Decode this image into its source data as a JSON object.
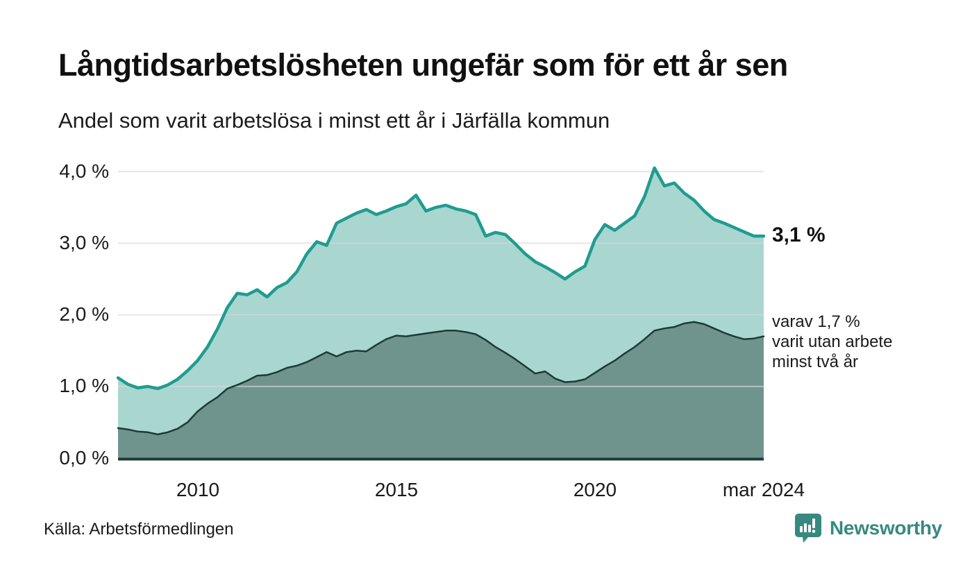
{
  "colors": {
    "total_line": "#1f9c90",
    "total_fill": "#a9d6cf",
    "two_year_line": "#1c3b36",
    "two_year_fill": "#6f948d",
    "gridline": "#d9d9d9",
    "axis": "#1c3b36",
    "brand_teal": "#37897f"
  },
  "annotations": {
    "latest_total": "3,1 %",
    "two_year_note_line1": "varav 1,7 %",
    "two_year_note_line2": "varit utan arbete",
    "two_year_note_line3": "minst två år"
  },
  "source": "Källa: Arbetsförmedlingen",
  "branding": {
    "name": "Newsworthy",
    "icon": "bar-chart-speech-bubble-icon"
  },
  "chart_data": {
    "type": "area",
    "title": "Långtidsarbetslösheten ungefär som för ett år sen",
    "subtitle": "Andel som varit arbetslösa i minst ett år i Järfälla kommun",
    "x_unit": "decimal_year",
    "x_range": [
      2008.0,
      2024.25
    ],
    "ylim": [
      0,
      4.3
    ],
    "grid": "horizontal",
    "legend_position": "right-annotations",
    "x": [
      2008.0,
      2008.25,
      2008.5,
      2008.75,
      2009.0,
      2009.25,
      2009.5,
      2009.75,
      2010.0,
      2010.25,
      2010.5,
      2010.75,
      2011.0,
      2011.25,
      2011.5,
      2011.75,
      2012.0,
      2012.25,
      2012.5,
      2012.75,
      2013.0,
      2013.25,
      2013.5,
      2013.75,
      2014.0,
      2014.25,
      2014.5,
      2014.75,
      2015.0,
      2015.25,
      2015.5,
      2015.75,
      2016.0,
      2016.25,
      2016.5,
      2016.75,
      2017.0,
      2017.25,
      2017.5,
      2017.75,
      2018.0,
      2018.25,
      2018.5,
      2018.75,
      2019.0,
      2019.25,
      2019.5,
      2019.75,
      2020.0,
      2020.25,
      2020.5,
      2020.75,
      2021.0,
      2021.25,
      2021.5,
      2021.75,
      2022.0,
      2022.25,
      2022.5,
      2022.75,
      2023.0,
      2023.25,
      2023.5,
      2023.75,
      2024.0,
      2024.25
    ],
    "series": [
      {
        "name": "Arbetslösa minst ett år (andel)",
        "latest_label": "3,1 %",
        "values": [
          1.12,
          1.03,
          0.98,
          1.0,
          0.97,
          1.02,
          1.1,
          1.22,
          1.36,
          1.55,
          1.8,
          2.1,
          2.3,
          2.28,
          2.35,
          2.25,
          2.38,
          2.45,
          2.6,
          2.85,
          3.02,
          2.97,
          3.28,
          3.35,
          3.42,
          3.47,
          3.4,
          3.45,
          3.51,
          3.55,
          3.67,
          3.45,
          3.5,
          3.53,
          3.48,
          3.45,
          3.4,
          3.1,
          3.15,
          3.12,
          2.99,
          2.85,
          2.74,
          2.67,
          2.59,
          2.5,
          2.6,
          2.68,
          3.05,
          3.26,
          3.18,
          3.28,
          3.38,
          3.65,
          4.05,
          3.8,
          3.84,
          3.7,
          3.6,
          3.45,
          3.33,
          3.28,
          3.22,
          3.16,
          3.1,
          3.1
        ]
      },
      {
        "name": "Utan arbete minst två år (andel)",
        "latest_label": "1,7 %",
        "values": [
          0.42,
          0.4,
          0.37,
          0.36,
          0.33,
          0.36,
          0.41,
          0.5,
          0.65,
          0.76,
          0.85,
          0.97,
          1.02,
          1.08,
          1.15,
          1.16,
          1.2,
          1.26,
          1.29,
          1.34,
          1.41,
          1.48,
          1.42,
          1.48,
          1.5,
          1.49,
          1.58,
          1.66,
          1.71,
          1.7,
          1.72,
          1.74,
          1.76,
          1.78,
          1.78,
          1.76,
          1.73,
          1.65,
          1.55,
          1.47,
          1.38,
          1.28,
          1.18,
          1.21,
          1.11,
          1.06,
          1.07,
          1.1,
          1.19,
          1.28,
          1.36,
          1.46,
          1.55,
          1.66,
          1.78,
          1.81,
          1.83,
          1.88,
          1.9,
          1.87,
          1.81,
          1.75,
          1.7,
          1.66,
          1.67,
          1.7
        ]
      }
    ],
    "y_ticks": [
      {
        "value": 4.0,
        "label": "4,0 %"
      },
      {
        "value": 3.0,
        "label": "3,0 %"
      },
      {
        "value": 2.0,
        "label": "2,0 %"
      },
      {
        "value": 1.0,
        "label": "1,0 %"
      },
      {
        "value": 0.0,
        "label": "0,0 %"
      }
    ],
    "x_ticks": [
      {
        "value": 2010,
        "label": "2010"
      },
      {
        "value": 2015,
        "label": "2015"
      },
      {
        "value": 2020,
        "label": "2020"
      },
      {
        "value": 2024.25,
        "label": "mar 2024"
      }
    ],
    "latest": {
      "total_pct": 3.1,
      "two_year_pct": 1.7,
      "period": "mar 2024"
    }
  }
}
